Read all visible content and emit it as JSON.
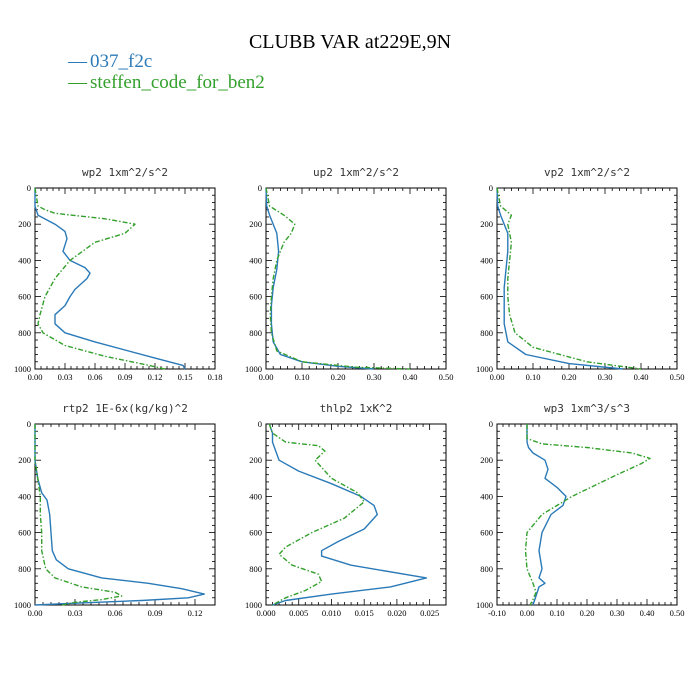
{
  "figure_title": "CLUBB VAR at229E,9N",
  "colors": {
    "series_1": "#2a7ab8",
    "series_2": "#33a02c"
  },
  "legend": [
    {
      "marker": "—",
      "label": "037_f2c"
    },
    {
      "marker": "—",
      "label": "steffen_code_for_ben2"
    }
  ],
  "chart_data": [
    {
      "type": "line",
      "title": "wp2  1xm^2/s^2",
      "xlim": [
        0,
        0.18
      ],
      "ylim": [
        1000,
        0
      ],
      "xticks": [
        0.0,
        0.03,
        0.06,
        0.09,
        0.12,
        0.15,
        0.18
      ],
      "xtick_labels": [
        "0.00",
        "0.03",
        "0.06",
        "0.09",
        "0.12",
        "0.15",
        "0.18"
      ],
      "yticks": [
        0,
        200,
        400,
        600,
        800,
        1000
      ],
      "ytick_labels": [
        "0",
        "200",
        "400",
        "600",
        "800",
        "1000"
      ],
      "series": [
        {
          "name": "037_f2c",
          "x": [
            0.0,
            0.0,
            0.003,
            0.02,
            0.03,
            0.032,
            0.028,
            0.035,
            0.05,
            0.055,
            0.052,
            0.04,
            0.035,
            0.03,
            0.02,
            0.02,
            0.03,
            0.06,
            0.12,
            0.148,
            0.15
          ],
          "y": [
            0,
            100,
            150,
            200,
            240,
            280,
            350,
            400,
            440,
            470,
            500,
            560,
            600,
            650,
            700,
            750,
            800,
            850,
            940,
            980,
            1000
          ]
        },
        {
          "name": "steffen_code_for_ben2",
          "x": [
            0.0,
            0.003,
            0.01,
            0.02,
            0.07,
            0.1,
            0.09,
            0.06,
            0.035,
            0.02,
            0.01,
            0.005,
            0.003,
            0.008,
            0.03,
            0.07,
            0.11,
            0.13
          ],
          "y": [
            0,
            100,
            120,
            140,
            170,
            200,
            250,
            300,
            400,
            500,
            600,
            700,
            750,
            800,
            870,
            930,
            975,
            1000
          ]
        }
      ]
    },
    {
      "type": "line",
      "title": "up2  1xm^2/s^2",
      "xlim": [
        0,
        0.5
      ],
      "ylim": [
        1000,
        0
      ],
      "xticks": [
        0.0,
        0.1,
        0.2,
        0.3,
        0.4,
        0.5
      ],
      "xtick_labels": [
        "0.00",
        "0.10",
        "0.20",
        "0.30",
        "0.40",
        "0.50"
      ],
      "yticks": [
        0,
        200,
        400,
        600,
        800,
        1000
      ],
      "ytick_labels": [
        "0",
        "200",
        "400",
        "600",
        "800",
        "1000"
      ],
      "series": [
        {
          "name": "037_f2c",
          "x": [
            0.0,
            0.002,
            0.01,
            0.02,
            0.03,
            0.035,
            0.03,
            0.02,
            0.015,
            0.015,
            0.02,
            0.04,
            0.1,
            0.2,
            0.3
          ],
          "y": [
            0,
            100,
            150,
            200,
            250,
            350,
            450,
            550,
            650,
            750,
            850,
            920,
            960,
            985,
            1000
          ]
        },
        {
          "name": "steffen_code_for_ben2",
          "x": [
            0.0,
            0.01,
            0.05,
            0.08,
            0.07,
            0.05,
            0.03,
            0.02,
            0.015,
            0.012,
            0.015,
            0.03,
            0.1,
            0.25,
            0.4
          ],
          "y": [
            0,
            100,
            150,
            200,
            250,
            300,
            400,
            500,
            600,
            700,
            800,
            900,
            960,
            990,
            1000
          ]
        }
      ]
    },
    {
      "type": "line",
      "title": "vp2  1xm^2/s^2",
      "xlim": [
        0,
        0.5
      ],
      "ylim": [
        1000,
        0
      ],
      "xticks": [
        0.0,
        0.1,
        0.2,
        0.3,
        0.4,
        0.5
      ],
      "xtick_labels": [
        "0.00",
        "0.10",
        "0.20",
        "0.30",
        "0.40",
        "0.50"
      ],
      "yticks": [
        0,
        200,
        400,
        600,
        800,
        1000
      ],
      "ytick_labels": [
        "0",
        "200",
        "400",
        "600",
        "800",
        "1000"
      ],
      "series": [
        {
          "name": "037_f2c",
          "x": [
            0.0,
            0.002,
            0.01,
            0.02,
            0.03,
            0.03,
            0.025,
            0.02,
            0.02,
            0.02,
            0.03,
            0.08,
            0.2,
            0.35
          ],
          "y": [
            0,
            100,
            150,
            200,
            250,
            350,
            450,
            550,
            650,
            750,
            850,
            920,
            970,
            1000
          ]
        },
        {
          "name": "steffen_code_for_ben2",
          "x": [
            0.0,
            0.01,
            0.04,
            0.03,
            0.04,
            0.035,
            0.03,
            0.03,
            0.035,
            0.05,
            0.1,
            0.25,
            0.4
          ],
          "y": [
            0,
            100,
            150,
            200,
            300,
            400,
            500,
            600,
            700,
            800,
            880,
            960,
            1000
          ]
        }
      ]
    },
    {
      "type": "line",
      "title": "rtp2  1E-6x(kg/kg)^2",
      "xlim": [
        0,
        0.135
      ],
      "ylim": [
        1000,
        0
      ],
      "xticks": [
        0.0,
        0.03,
        0.06,
        0.09,
        0.12
      ],
      "xtick_labels": [
        "0.00",
        "0.03",
        "0.06",
        "0.09",
        "0.12"
      ],
      "yticks": [
        0,
        200,
        400,
        600,
        800,
        1000
      ],
      "ytick_labels": [
        "0",
        "200",
        "400",
        "600",
        "800",
        "1000"
      ],
      "series": [
        {
          "name": "037_f2c",
          "x": [
            0.0,
            0.0,
            0.002,
            0.005,
            0.009,
            0.011,
            0.012,
            0.013,
            0.016,
            0.025,
            0.05,
            0.085,
            0.11,
            0.127,
            0.115,
            0.08,
            0.03,
            0.0
          ],
          "y": [
            0,
            200,
            300,
            380,
            420,
            500,
            600,
            700,
            750,
            800,
            850,
            880,
            910,
            940,
            960,
            975,
            990,
            1000
          ]
        },
        {
          "name": "steffen_code_for_ben2",
          "x": [
            0.0,
            0.0,
            0.002,
            0.004,
            0.004,
            0.005,
            0.005,
            0.008,
            0.015,
            0.035,
            0.06,
            0.065,
            0.05,
            0.03,
            0.02
          ],
          "y": [
            0,
            200,
            300,
            400,
            500,
            600,
            700,
            800,
            850,
            900,
            930,
            950,
            970,
            985,
            1000
          ]
        }
      ]
    },
    {
      "type": "line",
      "title": "thlp2  1xK^2",
      "xlim": [
        0,
        0.0275
      ],
      "ylim": [
        1000,
        0
      ],
      "xticks": [
        0.0,
        0.005,
        0.01,
        0.015,
        0.02,
        0.025
      ],
      "xtick_labels": [
        "0.000",
        "0.005",
        "0.010",
        "0.015",
        "0.020",
        "0.025"
      ],
      "yticks": [
        0,
        200,
        400,
        600,
        800,
        1000
      ],
      "ytick_labels": [
        "0",
        "200",
        "400",
        "600",
        "800",
        "1000"
      ],
      "series": [
        {
          "name": "037_f2c",
          "x": [
            0.0005,
            0.001,
            0.001,
            0.002,
            0.005,
            0.01,
            0.0145,
            0.0165,
            0.017,
            0.015,
            0.011,
            0.0085,
            0.0085,
            0.013,
            0.0245,
            0.019,
            0.01,
            0.003,
            0.001
          ],
          "y": [
            0,
            50,
            100,
            200,
            260,
            330,
            400,
            450,
            500,
            580,
            650,
            700,
            730,
            780,
            850,
            900,
            940,
            975,
            1000
          ]
        },
        {
          "name": "steffen_code_for_ben2",
          "x": [
            0.0005,
            0.001,
            0.003,
            0.008,
            0.009,
            0.0075,
            0.01,
            0.014,
            0.015,
            0.012,
            0.007,
            0.003,
            0.002,
            0.004,
            0.008,
            0.0085,
            0.006,
            0.003,
            0.001
          ],
          "y": [
            0,
            50,
            100,
            120,
            150,
            200,
            300,
            380,
            430,
            520,
            600,
            680,
            720,
            780,
            830,
            870,
            920,
            960,
            1000
          ]
        }
      ]
    },
    {
      "type": "line",
      "title": "wp3  1xm^3/s^3",
      "xlim": [
        -0.1,
        0.5
      ],
      "ylim": [
        1000,
        0
      ],
      "xticks": [
        -0.1,
        0.0,
        0.1,
        0.2,
        0.3,
        0.4,
        0.5
      ],
      "xtick_labels": [
        "-0.10",
        "0.00",
        "0.10",
        "0.20",
        "0.30",
        "0.40",
        "0.50"
      ],
      "yticks": [
        0,
        200,
        400,
        600,
        800,
        1000
      ],
      "ytick_labels": [
        "0",
        "200",
        "400",
        "600",
        "800",
        "1000"
      ],
      "series": [
        {
          "name": "037_f2c",
          "x": [
            0.0,
            0.0,
            0.005,
            0.02,
            0.06,
            0.07,
            0.06,
            0.1,
            0.13,
            0.12,
            0.08,
            0.05,
            0.04,
            0.05,
            0.04,
            0.06,
            0.04,
            0.03,
            0.02
          ],
          "y": [
            0,
            100,
            130,
            160,
            200,
            250,
            300,
            350,
            400,
            450,
            500,
            600,
            700,
            800,
            850,
            880,
            900,
            950,
            1000
          ]
        },
        {
          "name": "steffen_code_for_ben2",
          "x": [
            0.0,
            0.0,
            0.05,
            0.2,
            0.35,
            0.41,
            0.38,
            0.3,
            0.15,
            0.05,
            0.0,
            -0.005,
            0.0,
            0.02,
            0.03,
            0.02,
            0.01
          ],
          "y": [
            0,
            80,
            110,
            130,
            160,
            190,
            220,
            280,
            400,
            500,
            600,
            700,
            800,
            880,
            930,
            970,
            1000
          ]
        }
      ]
    }
  ]
}
